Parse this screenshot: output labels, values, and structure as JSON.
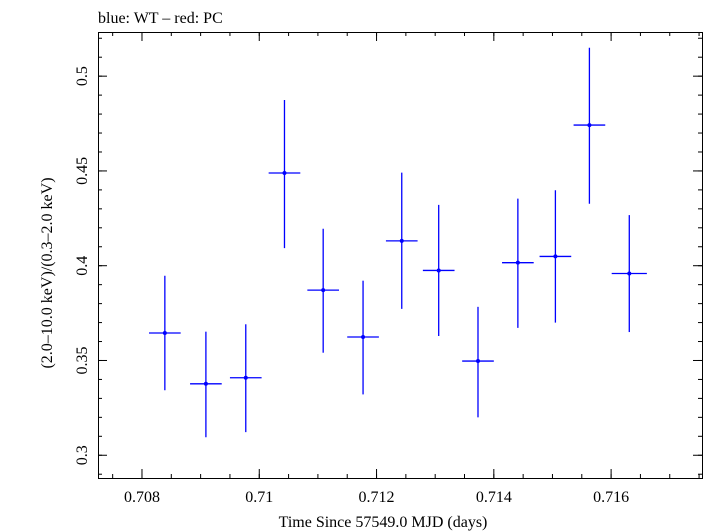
{
  "chart_data": {
    "type": "scatter",
    "title": "blue: WT – red: PC",
    "xlabel": "Time Since 57549.0 MJD (days)",
    "ylabel": "(2.0–10.0 keV)/(0.3–2.0 keV)",
    "xlim": [
      0.70725,
      0.71755
    ],
    "ylim": [
      0.288,
      0.5233
    ],
    "x_ticks": [
      {
        "value": 0.708,
        "label": "0.708"
      },
      {
        "value": 0.71,
        "label": "0.71"
      },
      {
        "value": 0.712,
        "label": "0.712"
      },
      {
        "value": 0.714,
        "label": "0.714"
      },
      {
        "value": 0.716,
        "label": "0.716"
      }
    ],
    "y_ticks": [
      {
        "value": 0.3,
        "label": "0.3"
      },
      {
        "value": 0.35,
        "label": "0.35"
      },
      {
        "value": 0.4,
        "label": "0.4"
      },
      {
        "value": 0.45,
        "label": "0.45"
      },
      {
        "value": 0.5,
        "label": "0.5"
      }
    ],
    "x_minor_step": 0.0005,
    "y_minor_step": 0.01,
    "grid": false,
    "series": [
      {
        "mode": "WT",
        "color": "#0000ff",
        "points": [
          {
            "x": 0.70839,
            "y": 0.3645,
            "xerr": 0.00027,
            "ylo": 0.3343,
            "yhi": 0.3947
          },
          {
            "x": 0.70909,
            "y": 0.3377,
            "xerr": 0.00027,
            "ylo": 0.3095,
            "yhi": 0.3652
          },
          {
            "x": 0.70977,
            "y": 0.3409,
            "xerr": 0.00027,
            "ylo": 0.3122,
            "yhi": 0.3691
          },
          {
            "x": 0.71043,
            "y": 0.4489,
            "xerr": 0.00027,
            "ylo": 0.4093,
            "yhi": 0.4874
          },
          {
            "x": 0.71109,
            "y": 0.3871,
            "xerr": 0.00027,
            "ylo": 0.3541,
            "yhi": 0.4195
          },
          {
            "x": 0.71177,
            "y": 0.3624,
            "xerr": 0.00027,
            "ylo": 0.3321,
            "yhi": 0.3921
          },
          {
            "x": 0.71243,
            "y": 0.4131,
            "xerr": 0.00027,
            "ylo": 0.3772,
            "yhi": 0.4491
          },
          {
            "x": 0.71306,
            "y": 0.3975,
            "xerr": 0.00027,
            "ylo": 0.3629,
            "yhi": 0.4321
          },
          {
            "x": 0.71373,
            "y": 0.3497,
            "xerr": 0.00027,
            "ylo": 0.32,
            "yhi": 0.3783
          },
          {
            "x": 0.71441,
            "y": 0.4016,
            "xerr": 0.00027,
            "ylo": 0.3672,
            "yhi": 0.4354
          },
          {
            "x": 0.71505,
            "y": 0.4049,
            "xerr": 0.00027,
            "ylo": 0.37,
            "yhi": 0.4398
          },
          {
            "x": 0.71563,
            "y": 0.4742,
            "xerr": 0.00027,
            "ylo": 0.4327,
            "yhi": 0.515
          },
          {
            "x": 0.71631,
            "y": 0.3959,
            "xerr": 0.0003,
            "ylo": 0.365,
            "yhi": 0.4267
          }
        ]
      }
    ]
  }
}
